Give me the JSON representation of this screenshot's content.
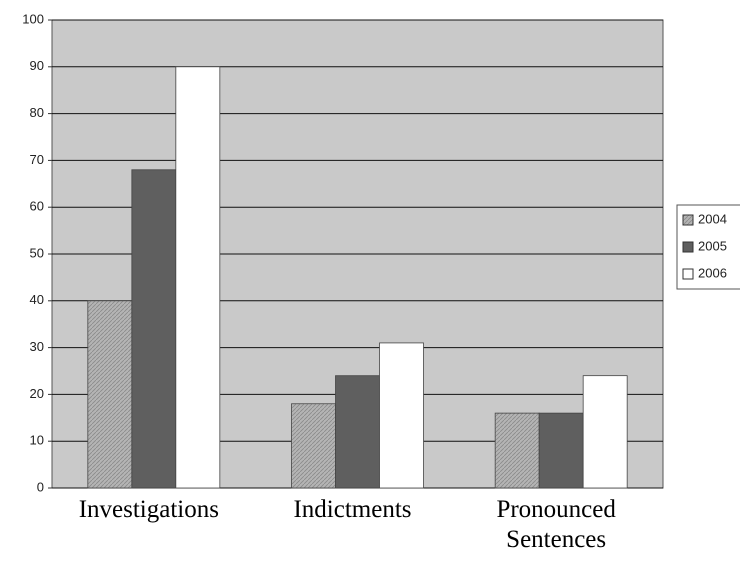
{
  "chart_data": {
    "type": "bar",
    "categories": [
      "Investigations",
      "Indictments",
      "Pronounced Sentences"
    ],
    "series": [
      {
        "name": "2004",
        "color": "#b4b4b4",
        "values": [
          40,
          18,
          16
        ]
      },
      {
        "name": "2005",
        "color": "#5f5f5f",
        "values": [
          68,
          24,
          16
        ]
      },
      {
        "name": "2006",
        "color": "#ffffff",
        "values": [
          90,
          31,
          24
        ]
      }
    ],
    "ylim": [
      0,
      100
    ],
    "yticks": [
      0,
      10,
      20,
      30,
      40,
      50,
      60,
      70,
      80,
      90,
      100
    ],
    "grid": true,
    "legend": "right"
  }
}
